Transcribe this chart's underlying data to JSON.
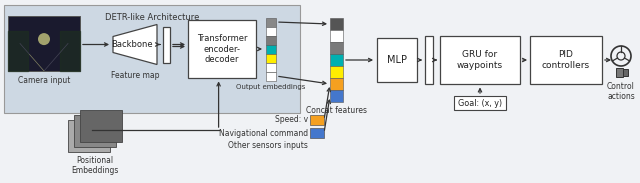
{
  "bg_main": "#f0f2f5",
  "detr_bg": "#cdd8e3",
  "white": "#ffffff",
  "black": "#111111",
  "arrow_color": "#333333",
  "title": "DETR-like Architecture",
  "camera_label": "Camera input",
  "backbone_label": "Backbone",
  "feature_map_label": "Feature map",
  "transformer_label": "Transformer\nencoder-\ndecoder",
  "output_emb_label": "Output embeddings",
  "positional_label": "Positional\nEmbeddings",
  "speed_label": "Speed: v",
  "nav_label": "Navigational command",
  "other_label": "Other sensors inputs",
  "concat_label": "Concat features",
  "mlp_label": "MLP",
  "gru_label": "GRU for\nwaypoints",
  "pid_label": "PID\ncontrollers",
  "goal_label": "Goal: (x, y)",
  "control_label": "Control\nactions",
  "emb_colors": [
    "#888888",
    "#ffffff",
    "#7a7a7a",
    "#00b0b0",
    "#ffee00",
    "#ffffff",
    "#ffffff"
  ],
  "concat_colors": [
    "#555555",
    "#ffffff",
    "#7a7a7a",
    "#00b0b0",
    "#ffee00",
    "#f5a020",
    "#4477cc"
  ],
  "pe_colors": [
    "#aaaaaa",
    "#888888",
    "#666666"
  ]
}
